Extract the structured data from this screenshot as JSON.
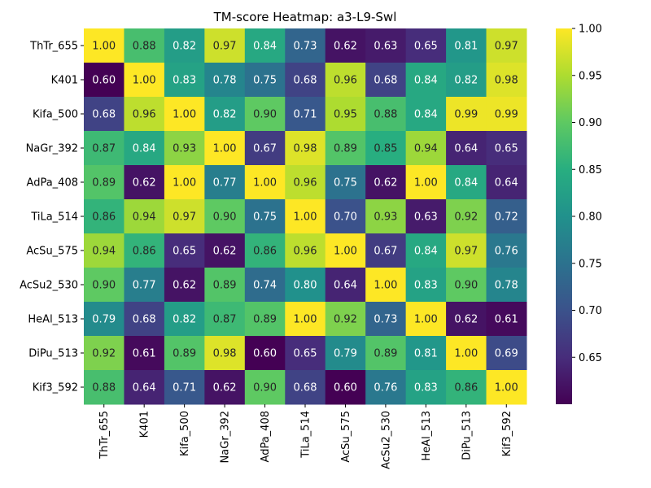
{
  "chart_data": {
    "type": "heatmap",
    "title": "TM-score Heatmap: a3-L9-Swl",
    "xlabel": "",
    "ylabel": "",
    "row_labels": [
      "ThTr_655",
      "K401",
      "Kifa_500",
      "NaGr_392",
      "AdPa_408",
      "TiLa_514",
      "AcSu_575",
      "AcSu2_530",
      "HeAl_513",
      "DiPu_513",
      "Kif3_592"
    ],
    "col_labels": [
      "ThTr_655",
      "K401",
      "Kifa_500",
      "NaGr_392",
      "AdPa_408",
      "TiLa_514",
      "AcSu_575",
      "AcSu2_530",
      "HeAl_513",
      "DiPu_513",
      "Kif3_592"
    ],
    "values": [
      [
        1.0,
        0.88,
        0.82,
        0.97,
        0.84,
        0.73,
        0.62,
        0.63,
        0.65,
        0.81,
        0.97
      ],
      [
        0.6,
        1.0,
        0.83,
        0.78,
        0.75,
        0.68,
        0.96,
        0.68,
        0.84,
        0.82,
        0.98
      ],
      [
        0.68,
        0.96,
        1.0,
        0.82,
        0.9,
        0.71,
        0.95,
        0.88,
        0.84,
        0.99,
        0.99
      ],
      [
        0.87,
        0.84,
        0.93,
        1.0,
        0.67,
        0.98,
        0.89,
        0.85,
        0.94,
        0.64,
        0.65
      ],
      [
        0.89,
        0.62,
        1.0,
        0.77,
        1.0,
        0.96,
        0.75,
        0.62,
        1.0,
        0.84,
        0.64
      ],
      [
        0.86,
        0.94,
        0.97,
        0.9,
        0.75,
        1.0,
        0.7,
        0.93,
        0.63,
        0.92,
        0.72
      ],
      [
        0.94,
        0.86,
        0.65,
        0.62,
        0.86,
        0.96,
        1.0,
        0.67,
        0.84,
        0.97,
        0.76
      ],
      [
        0.9,
        0.77,
        0.62,
        0.89,
        0.74,
        0.8,
        0.64,
        1.0,
        0.83,
        0.9,
        0.78
      ],
      [
        0.79,
        0.68,
        0.82,
        0.87,
        0.89,
        1.0,
        0.92,
        0.73,
        1.0,
        0.62,
        0.61
      ],
      [
        0.92,
        0.61,
        0.89,
        0.98,
        0.6,
        0.65,
        0.79,
        0.89,
        0.81,
        1.0,
        0.69
      ],
      [
        0.88,
        0.64,
        0.71,
        0.62,
        0.9,
        0.68,
        0.6,
        0.76,
        0.83,
        0.86,
        1.0
      ]
    ],
    "colormap": "viridis",
    "vmin": 0.6,
    "vmax": 1.0,
    "colorbar_ticks": [
      "0.65",
      "0.70",
      "0.75",
      "0.80",
      "0.85",
      "0.90",
      "0.95",
      "1.00"
    ],
    "value_format": "2 decimals",
    "grid": false,
    "legend": "colorbar-right"
  }
}
